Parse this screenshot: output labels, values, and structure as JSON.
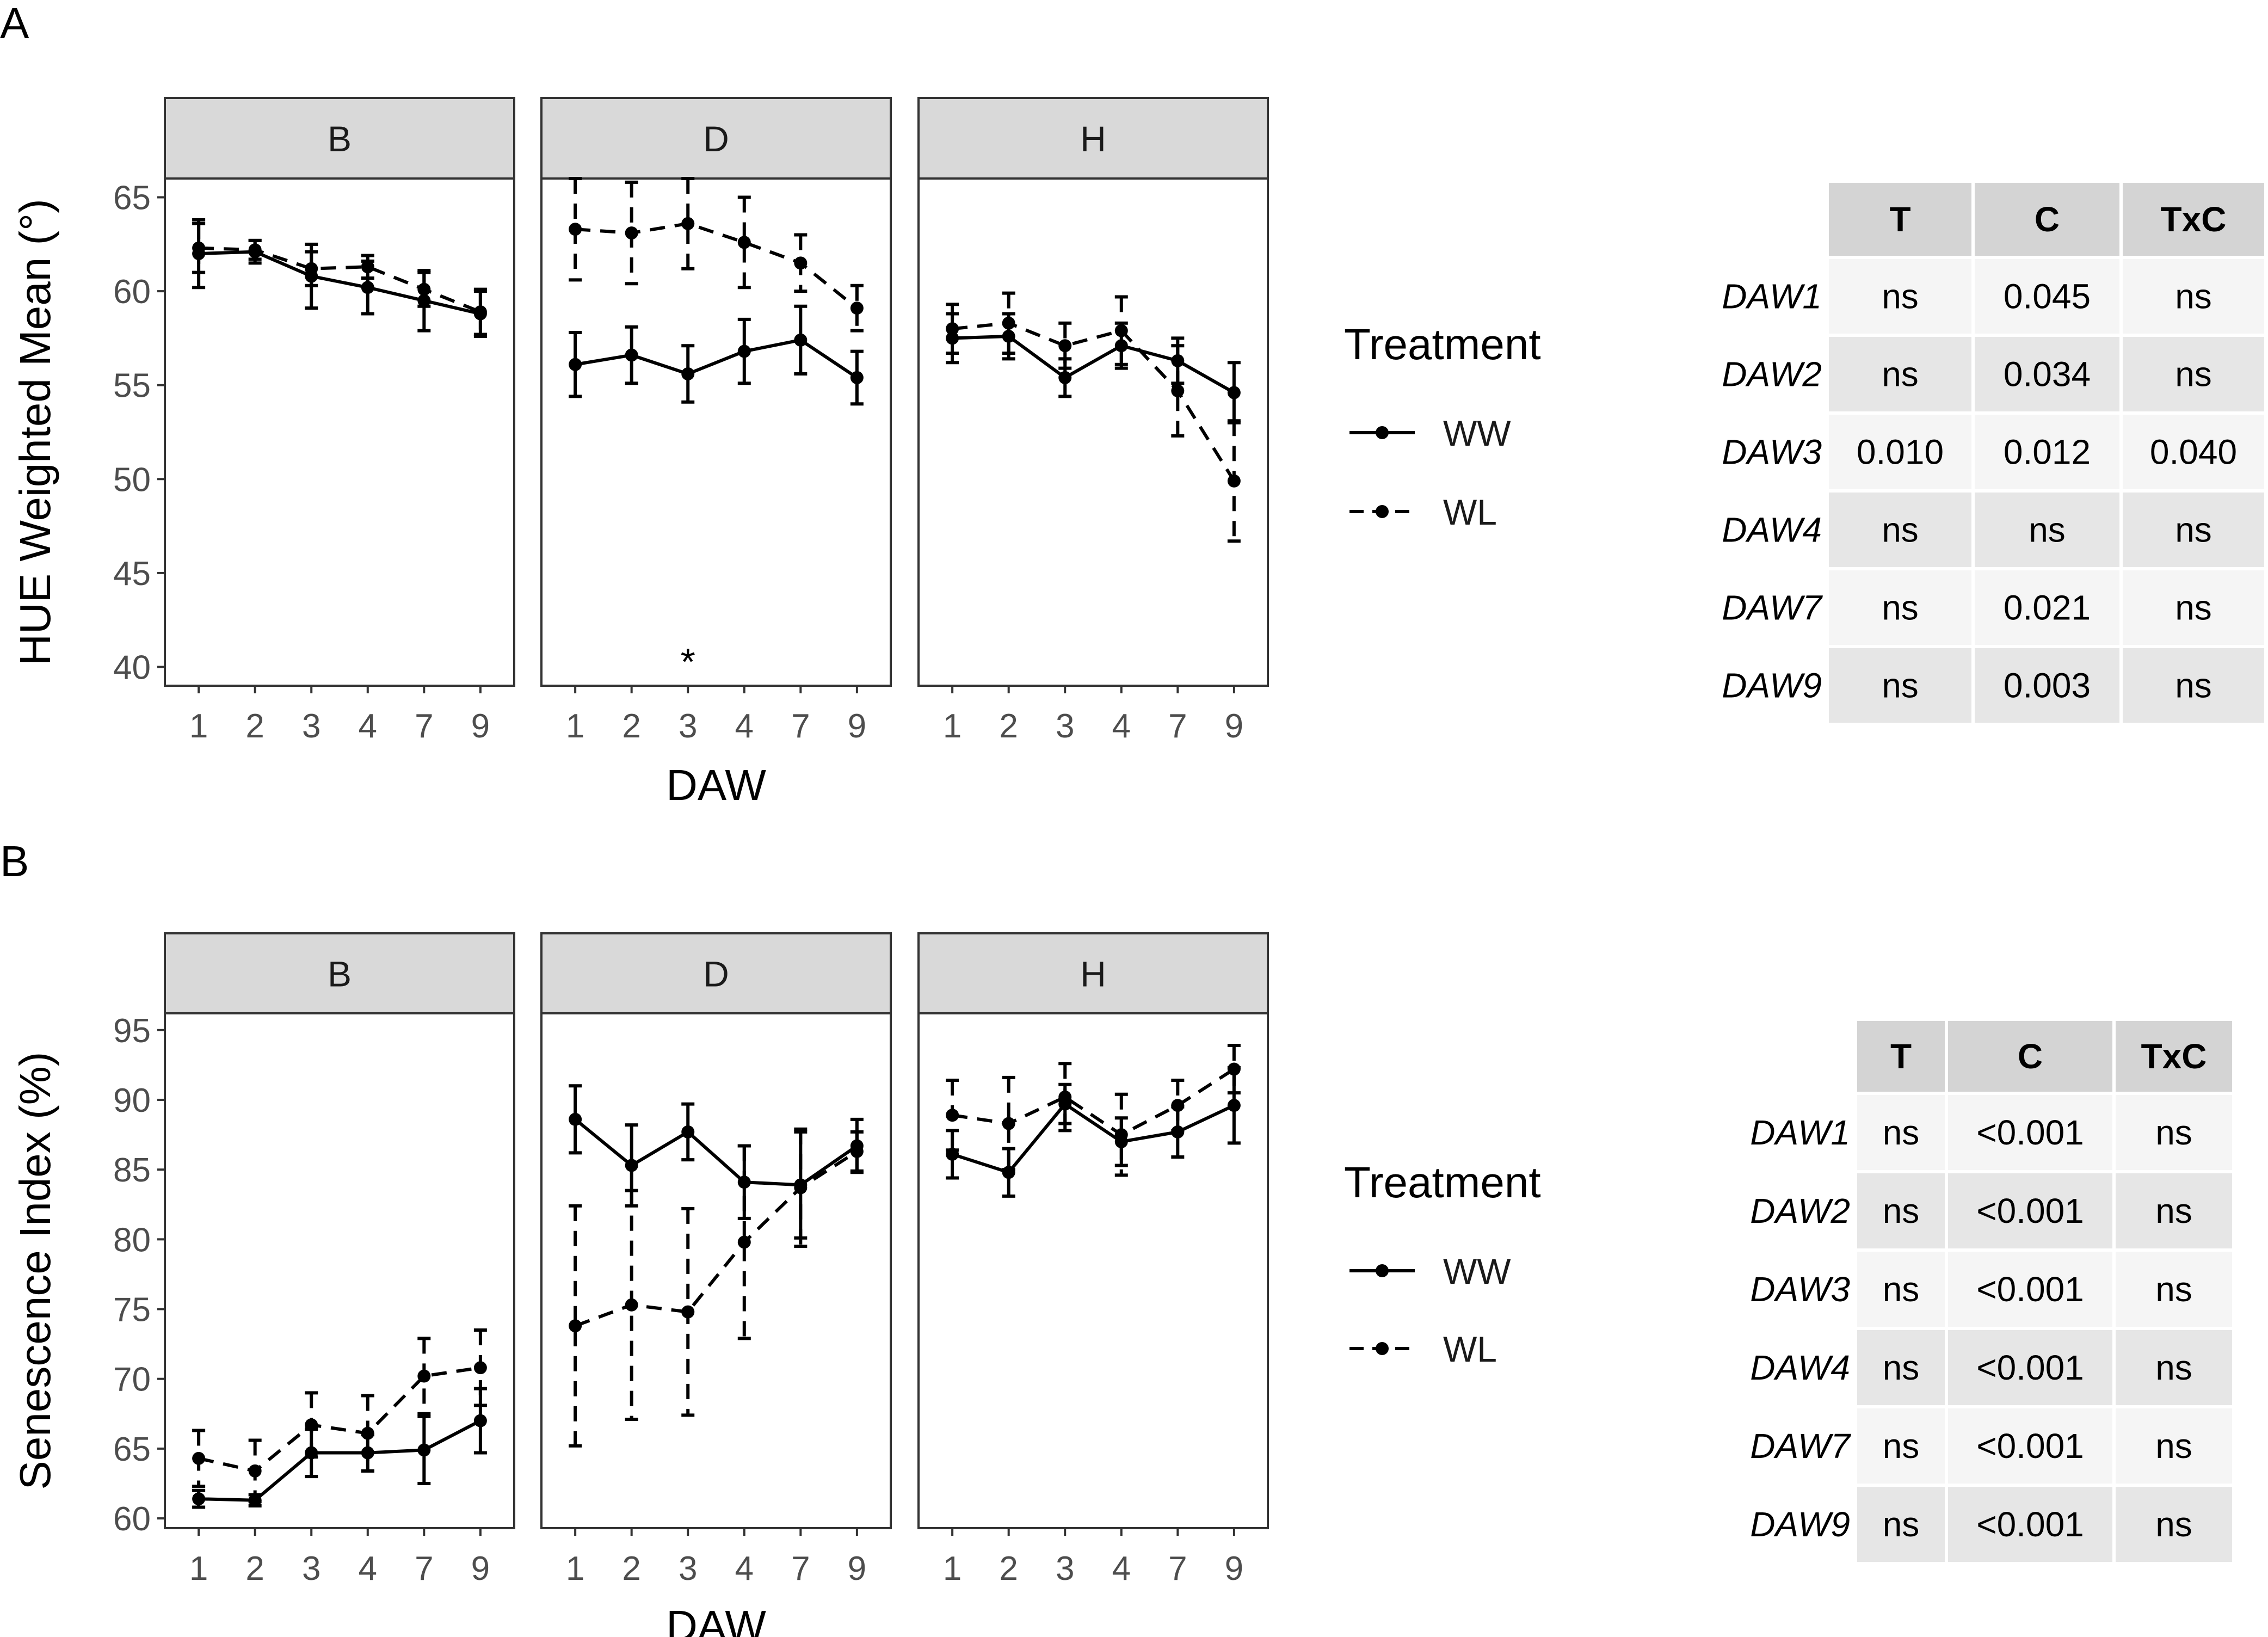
{
  "colors": {
    "strip_fill": "#d9d9d9",
    "frame": "#333333",
    "tick_label": "#4d4d4d",
    "ink": "#000000",
    "table_header": "#d4d4d4",
    "table_row_light": "#f5f5f5",
    "table_row_dark": "#e6e6e6"
  },
  "chart_data": [
    {
      "panel_label": "A",
      "type": "line",
      "ylabel": "HUE Weighted Mean (°)",
      "xlabel": "DAW",
      "ylim": [
        39,
        66
      ],
      "yticks": [
        40,
        45,
        50,
        55,
        60,
        65
      ],
      "categories": [
        "1",
        "2",
        "3",
        "4",
        "7",
        "9"
      ],
      "legend": {
        "title": "Treatment",
        "entries": [
          "WW",
          "WL"
        ]
      },
      "facets": [
        {
          "name": "B",
          "series": [
            {
              "name": "WW",
              "values": [
                62.0,
                62.1,
                60.8,
                60.2,
                59.5,
                58.8
              ],
              "err": [
                1.8,
                0.6,
                1.7,
                1.4,
                1.6,
                1.2
              ]
            },
            {
              "name": "WL",
              "values": [
                62.3,
                62.2,
                61.2,
                61.3,
                60.1,
                58.9
              ],
              "err": [
                1.3,
                0.5,
                0.9,
                0.6,
                0.9,
                1.2
              ]
            }
          ]
        },
        {
          "name": "D",
          "series": [
            {
              "name": "WW",
              "values": [
                56.1,
                56.6,
                55.6,
                56.8,
                57.4,
                55.4
              ],
              "err": [
                1.7,
                1.5,
                1.5,
                1.7,
                1.8,
                1.4
              ]
            },
            {
              "name": "WL",
              "values": [
                63.3,
                63.1,
                63.6,
                62.6,
                61.5,
                59.1
              ],
              "err": [
                2.7,
                2.7,
                2.4,
                2.4,
                1.5,
                1.2
              ]
            }
          ],
          "annotations": [
            {
              "x": "3",
              "y": 40.5,
              "text": "*"
            }
          ]
        },
        {
          "name": "H",
          "series": [
            {
              "name": "WW",
              "values": [
                57.5,
                57.6,
                55.4,
                57.1,
                56.3,
                54.6
              ],
              "err": [
                1.3,
                1.2,
                1.0,
                1.2,
                1.2,
                1.6
              ]
            },
            {
              "name": "WL",
              "values": [
                58.0,
                58.3,
                57.1,
                57.9,
                54.7,
                49.9
              ],
              "err": [
                1.3,
                1.6,
                1.2,
                1.8,
                2.4,
                3.2
              ]
            }
          ]
        }
      ],
      "table": {
        "columns": [
          "T",
          "C",
          "TxC"
        ],
        "rows": [
          {
            "label": "DAW1",
            "values": [
              "ns",
              "0.045",
              "ns"
            ]
          },
          {
            "label": "DAW2",
            "values": [
              "ns",
              "0.034",
              "ns"
            ]
          },
          {
            "label": "DAW3",
            "values": [
              "0.010",
              "0.012",
              "0.040"
            ]
          },
          {
            "label": "DAW4",
            "values": [
              "ns",
              "ns",
              "ns"
            ]
          },
          {
            "label": "DAW7",
            "values": [
              "ns",
              "0.021",
              "ns"
            ]
          },
          {
            "label": "DAW9",
            "values": [
              "ns",
              "0.003",
              "ns"
            ]
          }
        ]
      }
    },
    {
      "panel_label": "B",
      "type": "line",
      "ylabel": "Senescence Index (%)",
      "xlabel": "DAW",
      "ylim": [
        59.3,
        96.2
      ],
      "yticks": [
        60,
        65,
        70,
        75,
        80,
        85,
        90,
        95
      ],
      "categories": [
        "1",
        "2",
        "3",
        "4",
        "7",
        "9"
      ],
      "legend": {
        "title": "Treatment",
        "entries": [
          "WW",
          "WL"
        ]
      },
      "facets": [
        {
          "name": "B",
          "series": [
            {
              "name": "WW",
              "values": [
                61.4,
                61.3,
                64.7,
                64.7,
                64.9,
                67.0
              ],
              "err": [
                0.6,
                0.4,
                1.7,
                1.3,
                2.4,
                2.3
              ]
            },
            {
              "name": "WL",
              "values": [
                64.3,
                63.4,
                66.7,
                66.1,
                70.2,
                70.8
              ],
              "err": [
                2.0,
                2.2,
                2.3,
                2.7,
                2.7,
                2.7
              ]
            }
          ]
        },
        {
          "name": "D",
          "series": [
            {
              "name": "WW",
              "values": [
                88.6,
                85.3,
                87.7,
                84.1,
                83.9,
                86.7
              ],
              "err": [
                2.4,
                2.9,
                2.0,
                2.6,
                3.8,
                1.9
              ]
            },
            {
              "name": "WL",
              "values": [
                73.8,
                75.3,
                74.8,
                79.8,
                83.7,
                86.3
              ],
              "err": [
                8.6,
                8.2,
                7.4,
                6.9,
                4.2,
                1.4
              ]
            }
          ]
        },
        {
          "name": "H",
          "series": [
            {
              "name": "WW",
              "values": [
                86.1,
                84.8,
                89.7,
                87.0,
                87.7,
                89.6
              ],
              "err": [
                1.7,
                1.7,
                1.4,
                1.7,
                1.8,
                2.7
              ]
            },
            {
              "name": "WL",
              "values": [
                88.9,
                88.3,
                90.2,
                87.5,
                89.6,
                92.2
              ],
              "err": [
                2.5,
                3.3,
                2.4,
                2.9,
                1.8,
                1.7
              ]
            }
          ]
        }
      ],
      "table": {
        "columns": [
          "T",
          "C",
          "TxC"
        ],
        "rows": [
          {
            "label": "DAW1",
            "values": [
              "ns",
              "<0.001",
              "ns"
            ]
          },
          {
            "label": "DAW2",
            "values": [
              "ns",
              "<0.001",
              "ns"
            ]
          },
          {
            "label": "DAW3",
            "values": [
              "ns",
              "<0.001",
              "ns"
            ]
          },
          {
            "label": "DAW4",
            "values": [
              "ns",
              "<0.001",
              "ns"
            ]
          },
          {
            "label": "DAW7",
            "values": [
              "ns",
              "<0.001",
              "ns"
            ]
          },
          {
            "label": "DAW9",
            "values": [
              "ns",
              "<0.001",
              "ns"
            ]
          }
        ]
      }
    }
  ]
}
